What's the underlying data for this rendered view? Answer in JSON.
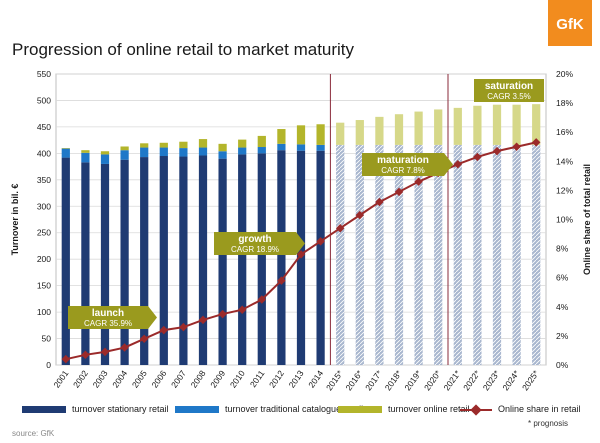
{
  "title": "Progression of online retail to market maturity",
  "logo_text": "GfK",
  "source": "source: GfK",
  "footnote": "* prognosis",
  "colors": {
    "stationary": "#1f3b73",
    "catalogue": "#1f78c8",
    "online": "#b3b52b",
    "online_forecast": "#d6d889",
    "stationary_forecast": "#a9b7cf",
    "line": "#9b2a2a",
    "phase_box": "#9a9a1e"
  },
  "legend": {
    "stationary": "turnover stationary retail",
    "catalogue": "turnover traditional catalogue retail",
    "online": "turnover online retail",
    "share": "Online share in retail"
  },
  "phases": [
    {
      "name": "launch",
      "cagr": "CAGR 35.9%"
    },
    {
      "name": "growth",
      "cagr": "CAGR 18.9%"
    },
    {
      "name": "maturation",
      "cagr": "CAGR 7.8%"
    },
    {
      "name": "saturation",
      "cagr": "CAGR 3.5%"
    }
  ],
  "chart_data": {
    "type": "bar",
    "categories": [
      "2001",
      "2002",
      "2003",
      "2004",
      "2005",
      "2006",
      "2007",
      "2008",
      "2009",
      "2010",
      "2011",
      "2012",
      "2013",
      "2014",
      "2015*",
      "2016*",
      "2017*",
      "2018*",
      "2019*",
      "2020*",
      "2021*",
      "2022*",
      "2023*",
      "2024*",
      "2025*"
    ],
    "ylabel": "Turnover in bil. €",
    "y2label": "Online share of total retail",
    "ylim": [
      0,
      550
    ],
    "yticks": [
      "0",
      "50",
      "100",
      "150",
      "200",
      "250",
      "300",
      "350",
      "400",
      "450",
      "500",
      "550"
    ],
    "y2lim": [
      0,
      20
    ],
    "y2ticks": [
      "0%",
      "2%",
      "4%",
      "6%",
      "8%",
      "10%",
      "12%",
      "14%",
      "16%",
      "18%",
      "20%"
    ],
    "series": [
      {
        "name": "turnover stationary retail",
        "type": "bar-stacked",
        "values": [
          392,
          383,
          380,
          388,
          393,
          395,
          394,
          396,
          390,
          398,
          400,
          406,
          405,
          405,
          405,
          405,
          405,
          405,
          405,
          405,
          405,
          405,
          405,
          405,
          405
        ]
      },
      {
        "name": "turnover traditional catalogue retail",
        "type": "bar-stacked",
        "values": [
          17,
          18,
          18,
          18,
          18,
          16,
          16,
          15,
          14,
          13,
          12,
          12,
          12,
          11,
          11,
          11,
          11,
          11,
          11,
          11,
          11,
          11,
          11,
          11,
          11
        ]
      },
      {
        "name": "turnover online retail",
        "type": "bar-stacked",
        "values": [
          1,
          5,
          6,
          7,
          8,
          9,
          12,
          16,
          14,
          15,
          21,
          28,
          36,
          39,
          42,
          47,
          53,
          58,
          63,
          67,
          70,
          74,
          76,
          76,
          77
        ]
      },
      {
        "name": "Online share in retail",
        "type": "line",
        "axis": "right",
        "values": [
          0.4,
          0.7,
          0.9,
          1.2,
          1.8,
          2.4,
          2.6,
          3.1,
          3.5,
          3.8,
          4.5,
          5.8,
          7.6,
          8.5,
          9.4,
          10.3,
          11.2,
          11.9,
          12.6,
          13.2,
          13.8,
          14.3,
          14.7,
          15.0,
          15.3
        ]
      }
    ],
    "phase_dividers_after": [
      "2014",
      "2020*"
    ],
    "grid": true,
    "legend_position": "bottom"
  }
}
